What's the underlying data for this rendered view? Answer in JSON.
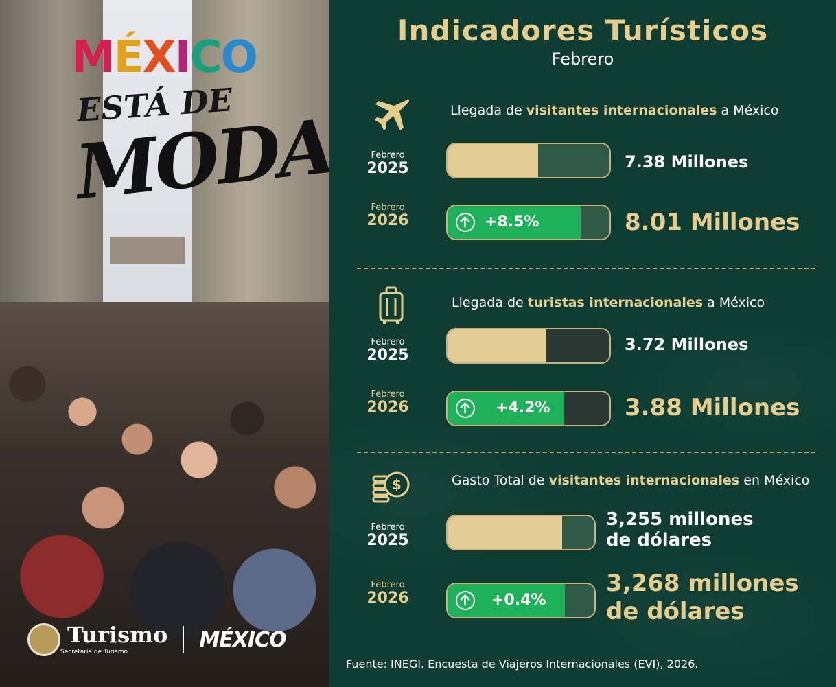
{
  "left": {
    "brand": {
      "mexico": "MÉXICO",
      "esta_de": "ESTÁ DE",
      "moda": "MODA"
    },
    "footer": {
      "turismo": "Turismo",
      "secretaria": "Secretaría de Turismo",
      "mexico": "MÉXICO"
    }
  },
  "header": {
    "title": "Indicadores Turísticos",
    "subtitle": "Febrero"
  },
  "sections": [
    {
      "icon": "airplane-icon",
      "heading_pre": "Llegada de ",
      "heading_hl": "visitantes internacionales",
      "heading_post": " a México",
      "row_2025": {
        "month": "Febrero",
        "year": "2025",
        "fill": 0.56,
        "value": "7.38 Millones"
      },
      "row_2026": {
        "month": "Febrero",
        "year": "2026",
        "fill": 0.82,
        "change": "+8.5%",
        "value": "8.01 Millones"
      }
    },
    {
      "icon": "luggage-icon",
      "heading_pre": "Llegada de ",
      "heading_hl": "turistas internacionales",
      "heading_post": " a México",
      "row_2025": {
        "month": "Febrero",
        "year": "2025",
        "fill": 0.61,
        "value": "3.72 Millones"
      },
      "row_2026": {
        "month": "Febrero",
        "year": "2026",
        "fill": 0.72,
        "change": "+4.2%",
        "value": "3.88 Millones"
      }
    },
    {
      "icon": "money-coins-icon",
      "heading_pre": "Gasto Total de ",
      "heading_hl": "visitantes internacionales",
      "heading_post": " en México",
      "row_2025": {
        "month": "Febrero",
        "year": "2025",
        "fill": 0.78,
        "value_line1": "3,255 millones",
        "value_line2": "de dólares"
      },
      "row_2026": {
        "month": "Febrero",
        "year": "2026",
        "fill": 0.8,
        "change": "+0.4%",
        "value_line1": "3,268 millones",
        "value_line2": "de dólares"
      }
    }
  ],
  "source": "Fuente: INEGI. Encuesta de Viajeros Internacionales (EVI), 2026.",
  "colors": {
    "background": "#0f3d33",
    "gold": "#e5cd8e",
    "bar_gold": "#e2cc93",
    "growth_green": "#1fb15a",
    "dark_rest": "#2c3834",
    "green_rest": "#2f5a47"
  }
}
